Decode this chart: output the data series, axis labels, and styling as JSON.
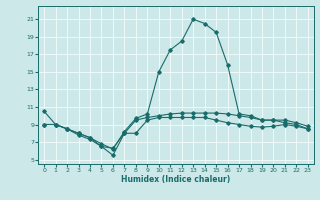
{
  "xlabel": "Humidex (Indice chaleur)",
  "ylabel": "",
  "xlim": [
    -0.5,
    23.5
  ],
  "ylim": [
    4.5,
    22.5
  ],
  "xticks": [
    0,
    1,
    2,
    3,
    4,
    5,
    6,
    7,
    8,
    9,
    10,
    11,
    12,
    13,
    14,
    15,
    16,
    17,
    18,
    19,
    20,
    21,
    22,
    23
  ],
  "yticks": [
    5,
    7,
    9,
    11,
    13,
    15,
    17,
    19,
    21
  ],
  "bg_color": "#cce8e8",
  "line_color": "#1a6b6b",
  "lines": [
    [
      10.5,
      9.0,
      8.5,
      8.0,
      7.5,
      6.8,
      6.2,
      8.2,
      9.7,
      10.2,
      15.0,
      17.5,
      18.5,
      21.0,
      20.5,
      19.5,
      15.8,
      10.2,
      10.0,
      9.5,
      9.5,
      9.2,
      9.0,
      8.5
    ],
    [
      9.0,
      9.0,
      8.5,
      7.8,
      7.3,
      6.5,
      6.3,
      8.0,
      9.5,
      9.8,
      10.0,
      10.2,
      10.3,
      10.3,
      10.3,
      10.3,
      10.2,
      10.0,
      9.8,
      9.5,
      9.5,
      9.5,
      9.2,
      8.8
    ],
    [
      9.0,
      9.0,
      8.5,
      8.0,
      7.5,
      6.5,
      5.5,
      8.0,
      8.0,
      9.5,
      9.8,
      9.8,
      9.8,
      9.8,
      9.8,
      9.5,
      9.2,
      9.0,
      8.8,
      8.7,
      8.8,
      9.0,
      8.8,
      8.5
    ]
  ]
}
